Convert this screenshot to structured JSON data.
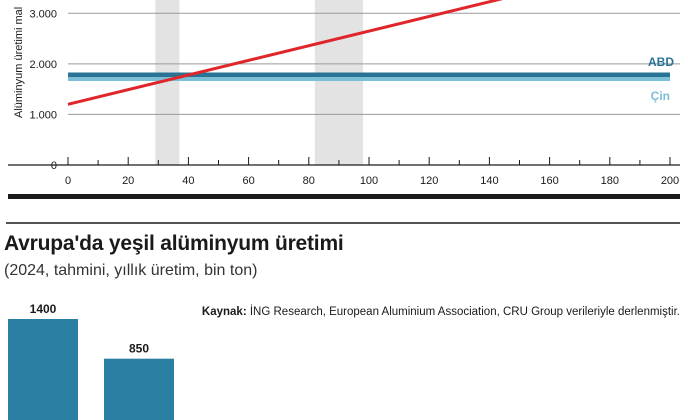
{
  "chart_data": [
    {
      "type": "line",
      "ylabel": "Alüminyum üretimi mal",
      "x_ticks": [
        "0",
        "20",
        "40",
        "60",
        "80",
        "100",
        "120",
        "140",
        "160",
        "180",
        "200"
      ],
      "y_ticks": [
        "0",
        "1.000",
        "2.000",
        "3.000"
      ],
      "xlim": [
        0,
        200
      ],
      "ylim": [
        0,
        3500
      ],
      "shaded_ranges": [
        [
          29,
          37
        ],
        [
          82,
          98
        ]
      ],
      "series": [
        {
          "name": "ABD",
          "color": "#2a7394",
          "x": [
            0,
            200
          ],
          "y": [
            1780,
            1780
          ]
        },
        {
          "name": "Çin",
          "color": "#7bbfd6",
          "x": [
            0,
            200
          ],
          "y": [
            1700,
            1700
          ]
        },
        {
          "name": "",
          "color": "#e0262a",
          "x": [
            0,
            145
          ],
          "y": [
            1200,
            3300
          ]
        }
      ],
      "grid": true
    },
    {
      "type": "bar",
      "title": "Avrupa'da yeşil alüminyum üretimi",
      "subtitle": "(2024, tahmini, yıllık üretim, bin ton)",
      "values": [
        1400,
        850
      ],
      "value_labels": [
        "1400",
        "850"
      ],
      "color": "#2a7fa3"
    }
  ],
  "source": {
    "prefix": "Kaynak:",
    "text": " İNG Research, European Aluminium Association, CRU Group verileriyle derlenmiştir."
  }
}
